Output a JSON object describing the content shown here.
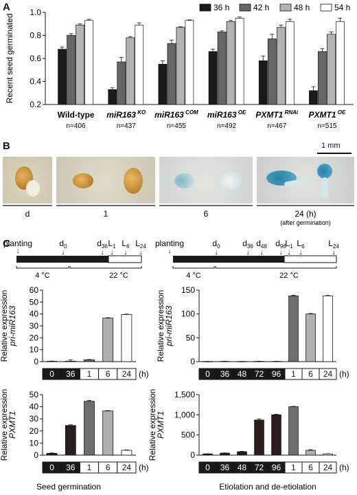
{
  "panel_labels": {
    "a": "A",
    "b": "B",
    "c": "C"
  },
  "colors": {
    "c36": "#1a1a1a",
    "c42": "#666666",
    "c48": "#b3b3b3",
    "c54": "#ffffff",
    "dark": "#2a1c1c",
    "mid": "#6e6e6e",
    "light": "#b0b0b0",
    "white": "#ffffff"
  },
  "chart_data": [
    {
      "type": "bar",
      "ylabel": "Recent seed germinated",
      "ylim": [
        0.2,
        1.0
      ],
      "yticks": [
        "0.2",
        "0.4",
        "0.6",
        "0.8",
        "1.0"
      ],
      "categories": [
        {
          "main": "Wild-type",
          "sup": "",
          "italic": false,
          "n": "n=406"
        },
        {
          "main": "miR163",
          "sup": "KO",
          "italic": true,
          "n": "n=437"
        },
        {
          "main": "miR163",
          "sup": "COM",
          "italic": true,
          "n": "n=455"
        },
        {
          "main": "miR163",
          "sup": "OE",
          "italic": true,
          "n": "n=492"
        },
        {
          "main": "PXMT1",
          "sup": "RNAi",
          "italic": true,
          "n": "n=467"
        },
        {
          "main": "PXMT1",
          "sup": "OE",
          "italic": true,
          "n": "n=515"
        }
      ],
      "series": [
        {
          "name": "36 h",
          "values": [
            0.68,
            0.33,
            0.55,
            0.66,
            0.58,
            0.32
          ],
          "errors": [
            0.02,
            0.015,
            0.03,
            0.02,
            0.04,
            0.035
          ]
        },
        {
          "name": "42 h",
          "values": [
            0.8,
            0.57,
            0.73,
            0.83,
            0.77,
            0.66
          ],
          "errors": [
            0.015,
            0.04,
            0.03,
            0.01,
            0.04,
            0.025
          ]
        },
        {
          "name": "48 h",
          "values": [
            0.89,
            0.78,
            0.87,
            0.92,
            0.87,
            0.81
          ],
          "errors": [
            0.01,
            0.01,
            0.005,
            0.01,
            0.02,
            0.02
          ]
        },
        {
          "name": "54 h",
          "values": [
            0.93,
            0.89,
            0.93,
            0.95,
            0.92,
            0.92
          ],
          "errors": [
            0.01,
            0.02,
            0.005,
            0.01,
            0.02,
            0.03
          ]
        }
      ]
    },
    {
      "type": "bar",
      "ylabel_top": "Relative expression",
      "ylabel_gene": "pri-miR163",
      "ylim": [
        0,
        60
      ],
      "yticks": [
        "0",
        "10",
        "20",
        "30",
        "40",
        "50",
        "60"
      ],
      "categories": [
        "0",
        "36",
        "1",
        "6",
        "24"
      ],
      "values": [
        0.3,
        0.4,
        1.5,
        36.5,
        39.5
      ],
      "errors": [
        0.2,
        1.0,
        0.3,
        0.4,
        0.4
      ],
      "bar_colors": [
        "dark",
        "dark",
        "mid",
        "light",
        "white"
      ]
    },
    {
      "type": "bar",
      "ylabel_top": "Relative expression",
      "ylabel_gene": "pri-miR163",
      "ylim": [
        0,
        150
      ],
      "yticks": [
        "0",
        "50",
        "100",
        "150"
      ],
      "categories": [
        "0",
        "36",
        "48",
        "72",
        "96",
        "1",
        "6",
        "24"
      ],
      "values": [
        0.3,
        0.5,
        0.3,
        0.5,
        0.5,
        138,
        100,
        138
      ],
      "errors": [
        0.2,
        0.5,
        0.2,
        0.4,
        0.4,
        1.0,
        1.0,
        1.0
      ],
      "bar_colors": [
        "dark",
        "dark",
        "dark",
        "dark",
        "dark",
        "mid",
        "light",
        "white"
      ]
    },
    {
      "type": "bar",
      "ylabel_top": "Relative expression",
      "ylabel_gene": "PXMT1",
      "ylim": [
        0,
        50
      ],
      "yticks": [
        "0",
        "10",
        "20",
        "30",
        "40",
        "50"
      ],
      "categories": [
        "0",
        "36",
        "1",
        "6",
        "24"
      ],
      "values": [
        1.5,
        24.5,
        44.5,
        36.5,
        4
      ],
      "errors": [
        0.3,
        0.6,
        0.6,
        0.3,
        0.3
      ],
      "bar_colors": [
        "dark",
        "dark",
        "mid",
        "light",
        "white"
      ]
    },
    {
      "type": "bar",
      "ylabel_top": "Relative expression",
      "ylabel_gene": "PXMT1",
      "ylim": [
        0,
        1500
      ],
      "yticks": [
        "0",
        "500",
        "1,000",
        "1,500"
      ],
      "categories": [
        "0",
        "36",
        "48",
        "72",
        "96",
        "1",
        "6",
        "24"
      ],
      "values": [
        30,
        50,
        85,
        870,
        1000,
        1200,
        120,
        30
      ],
      "errors": [
        5,
        5,
        10,
        25,
        15,
        10,
        15,
        5
      ],
      "bar_colors": [
        "dark",
        "dark",
        "dark",
        "dark",
        "dark",
        "mid",
        "light",
        "white"
      ]
    }
  ],
  "panel_b": {
    "scale_bar": "1 mm",
    "groups": [
      {
        "label": "d",
        "sub": ""
      },
      {
        "label": "1",
        "sub": ""
      },
      {
        "label": "6",
        "sub": ""
      },
      {
        "label": "24 (h)",
        "sub": "(after germination)"
      }
    ]
  },
  "timeline_left": {
    "planting": "planting",
    "markers": [
      {
        "main": "d",
        "sub": "0"
      },
      {
        "main": "d",
        "sub": "36"
      },
      {
        "main": "L",
        "sub": "1"
      },
      {
        "main": "L",
        "sub": "6"
      },
      {
        "main": "L",
        "sub": "24"
      }
    ],
    "temp_cold": "4 °C",
    "temp_warm": "22 °C"
  },
  "timeline_right": {
    "planting": "planting",
    "markers": [
      {
        "main": "d",
        "sub": "0"
      },
      {
        "main": "d",
        "sub": "36"
      },
      {
        "main": "d",
        "sub": "48"
      },
      {
        "main": "d",
        "sub": "96"
      },
      {
        "main": "L",
        "sub": "1"
      },
      {
        "main": "L",
        "sub": "6"
      },
      {
        "main": "L",
        "sub": "24"
      }
    ],
    "temp_cold": "4 °C",
    "temp_warm": "22 °C"
  },
  "unit_h": "(h)",
  "footer_left": "Seed germination",
  "footer_right": "Etiolation and de-etiolation"
}
